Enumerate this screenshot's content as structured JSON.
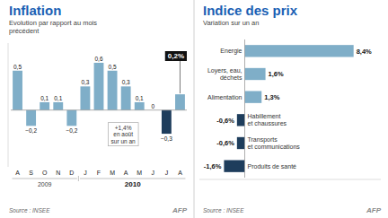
{
  "chart_data": [
    {
      "type": "bar",
      "title": "Inflation",
      "subtitle": "Evolution par rapport au mois\nprécédent",
      "source": "Source : INSEE",
      "credit": "AFP",
      "categories": [
        "A",
        "S",
        "O",
        "N",
        "D",
        "J",
        "F",
        "M",
        "A",
        "M",
        "J",
        "J",
        "A"
      ],
      "values": [
        0.5,
        -0.2,
        0.1,
        0.1,
        -0.2,
        0.3,
        0.6,
        0.5,
        0.3,
        0.1,
        0.0,
        -0.3,
        0.2
      ],
      "value_labels": [
        "0,5",
        "−0,2",
        "0,1",
        "0,1",
        "−0,2",
        "0,3",
        "0,6",
        "0,5",
        "0,3",
        "0,1",
        "0",
        "−0,3",
        "0,2%"
      ],
      "colors": [
        "#7faec8",
        "#7faec8",
        "#7faec8",
        "#7faec8",
        "#7faec8",
        "#7faec8",
        "#7faec8",
        "#7faec8",
        "#7faec8",
        "#7faec8",
        "#7faec8",
        "#1e3d5c",
        "#7faec8"
      ],
      "annotations": [
        "+1,4%\nen août\nsur un an",
        "2009",
        "2010"
      ],
      "ylim": [
        -0.72,
        0.85
      ],
      "data_labels": true,
      "tick_labels": "x"
    },
    {
      "type": "bar",
      "orientation": "horizontal",
      "title": "Indice des prix",
      "subtitle": "Variation sur un an",
      "source": "Source : INSEE",
      "credit": "AFP",
      "categories": [
        "Energie",
        "Loyers, eau,\ndéchets",
        "Alimentation",
        "Habillement\net chaussures",
        "Transports\net communications",
        "Produits de santé"
      ],
      "values": [
        8.4,
        1.6,
        1.3,
        -0.6,
        -0.6,
        -1.6
      ],
      "value_labels": [
        "8,4%",
        "1,6%",
        "1,3%",
        "-0,6%",
        "-0,6%",
        "-1,6%"
      ],
      "colors": [
        "#7faec8",
        "#7faec8",
        "#7faec8",
        "#1e3d5c",
        "#1e3d5c",
        "#1e3d5c"
      ],
      "xlim": [
        -3.5,
        10.5
      ],
      "data_labels": true,
      "tick_labels": false
    }
  ]
}
